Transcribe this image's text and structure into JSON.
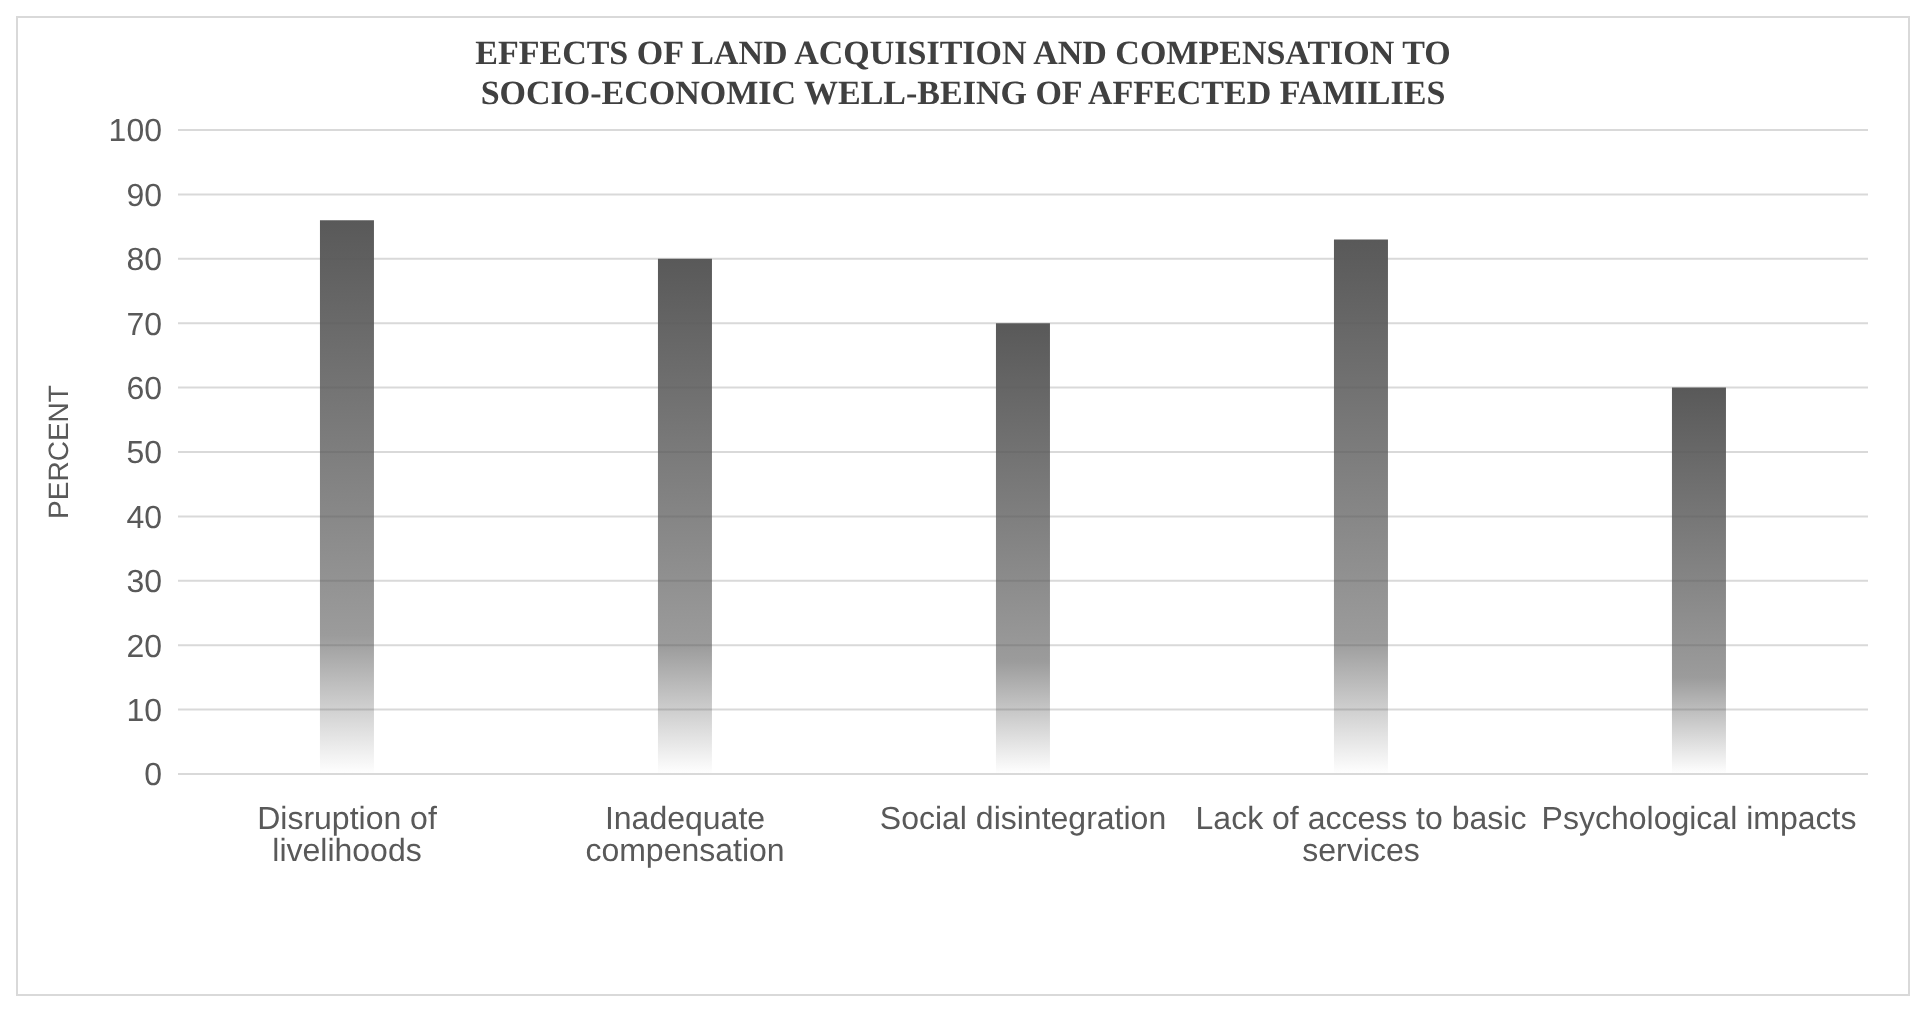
{
  "chart_data": {
    "type": "bar",
    "title": "EFFECTS OF LAND ACQUISITION AND COMPENSATION TO SOCIO-ECONOMIC WELL-BEING OF AFFECTED FAMILIES",
    "ylabel": "PERCENT",
    "categories": [
      "Disruption of livelihoods",
      "Inadequate compensation",
      "Social disintegration",
      "Lack of access to basic services",
      "Psychological impacts"
    ],
    "values": [
      86,
      80,
      70,
      83,
      60
    ],
    "color": "#595959",
    "ylim": [
      0,
      100
    ],
    "yticks": [
      0,
      10,
      20,
      30,
      40,
      50,
      60,
      70,
      80,
      90,
      100
    ],
    "grid": "y",
    "legend": false
  }
}
